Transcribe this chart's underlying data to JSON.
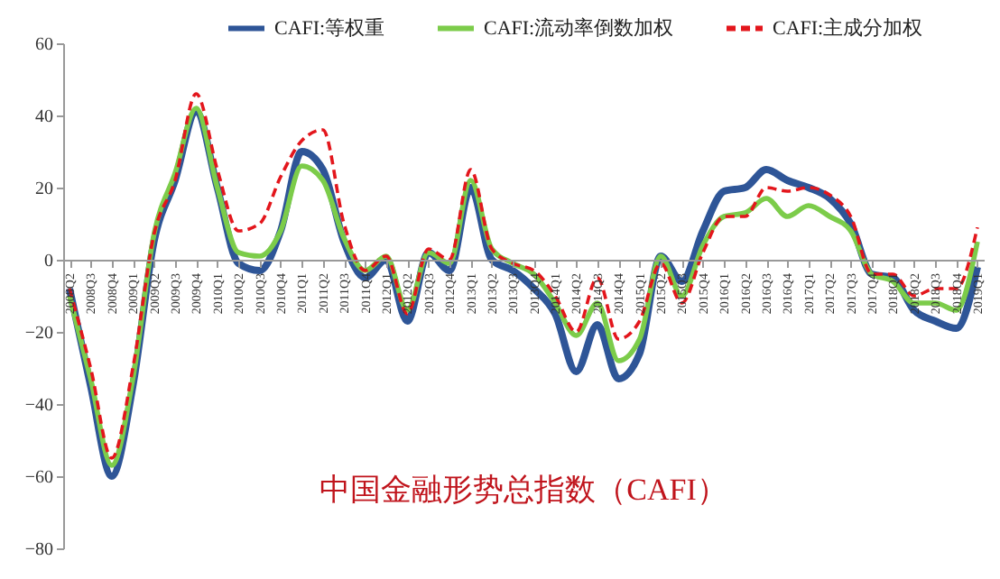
{
  "chart_data": {
    "type": "line",
    "title": "中国金融形势总指数（CAFI）",
    "categories": [
      "2008Q2",
      "2008Q3",
      "2008Q4",
      "2009Q1",
      "2009Q2",
      "2009Q3",
      "2009Q4",
      "2010Q1",
      "2010Q2",
      "2010Q3",
      "2010Q4",
      "2011Q1",
      "2011Q2",
      "2011Q3",
      "2011Q4",
      "2012Q1",
      "2012Q2",
      "2012Q3",
      "2012Q4",
      "2013Q1",
      "2013Q2",
      "2013Q3",
      "2013Q4",
      "2014Q1",
      "2014Q2",
      "2014Q3",
      "2014Q4",
      "2015Q1",
      "2015Q2",
      "2015Q3",
      "2015Q4",
      "2016Q1",
      "2016Q2",
      "2016Q3",
      "2016Q4",
      "2017Q1",
      "2017Q2",
      "2017Q3",
      "2017Q4",
      "2018Q1",
      "2018Q2",
      "2018Q3",
      "2018Q4",
      "2019Q1"
    ],
    "series": [
      {
        "name": "CAFI:等权重",
        "color": "#2e5597",
        "line_style": "solid",
        "values": [
          -8,
          -35,
          -60,
          -35,
          5,
          22,
          41,
          20,
          -1,
          -3,
          8,
          30,
          25,
          5,
          -5,
          0,
          -17,
          2,
          -3,
          20,
          0,
          -3,
          -8,
          -15,
          -31,
          -18,
          -33,
          -26,
          1,
          -6,
          8,
          19,
          20,
          25,
          22,
          20,
          17,
          10,
          -4,
          -5,
          -14,
          -17,
          -19,
          -2
        ]
      },
      {
        "name": "CAFI:流动率倒数加权",
        "color": "#7ccc4a",
        "line_style": "solid",
        "values": [
          -10,
          -33,
          -57,
          -33,
          7,
          24,
          42,
          20,
          2,
          1,
          8,
          26,
          22,
          6,
          -3,
          1,
          -14,
          2,
          -1,
          22,
          3,
          -1,
          -4,
          -12,
          -21,
          -12,
          -28,
          -22,
          1,
          -10,
          4,
          12,
          13,
          17,
          12,
          15,
          12,
          8,
          -4,
          -6,
          -12,
          -12,
          -14,
          5
        ]
      },
      {
        "name": "CAFI:主成分加权",
        "color": "#e3161c",
        "line_style": "dashed",
        "values": [
          -8,
          -30,
          -55,
          -30,
          7,
          22,
          46,
          25,
          8,
          10,
          23,
          33,
          36,
          10,
          -3,
          1,
          -15,
          3,
          0,
          25,
          3,
          -1,
          -3,
          -10,
          -20,
          -5,
          -22,
          -17,
          -1,
          -12,
          2,
          12,
          12,
          20,
          19,
          20,
          18,
          12,
          -4,
          -4,
          -10,
          -8,
          -8,
          9
        ]
      }
    ],
    "ylim": [
      -80,
      60
    ],
    "yticks": [
      -80,
      -60,
      -40,
      -20,
      0,
      20,
      40,
      60
    ],
    "grid": false,
    "legend": "top",
    "marker": "none"
  }
}
